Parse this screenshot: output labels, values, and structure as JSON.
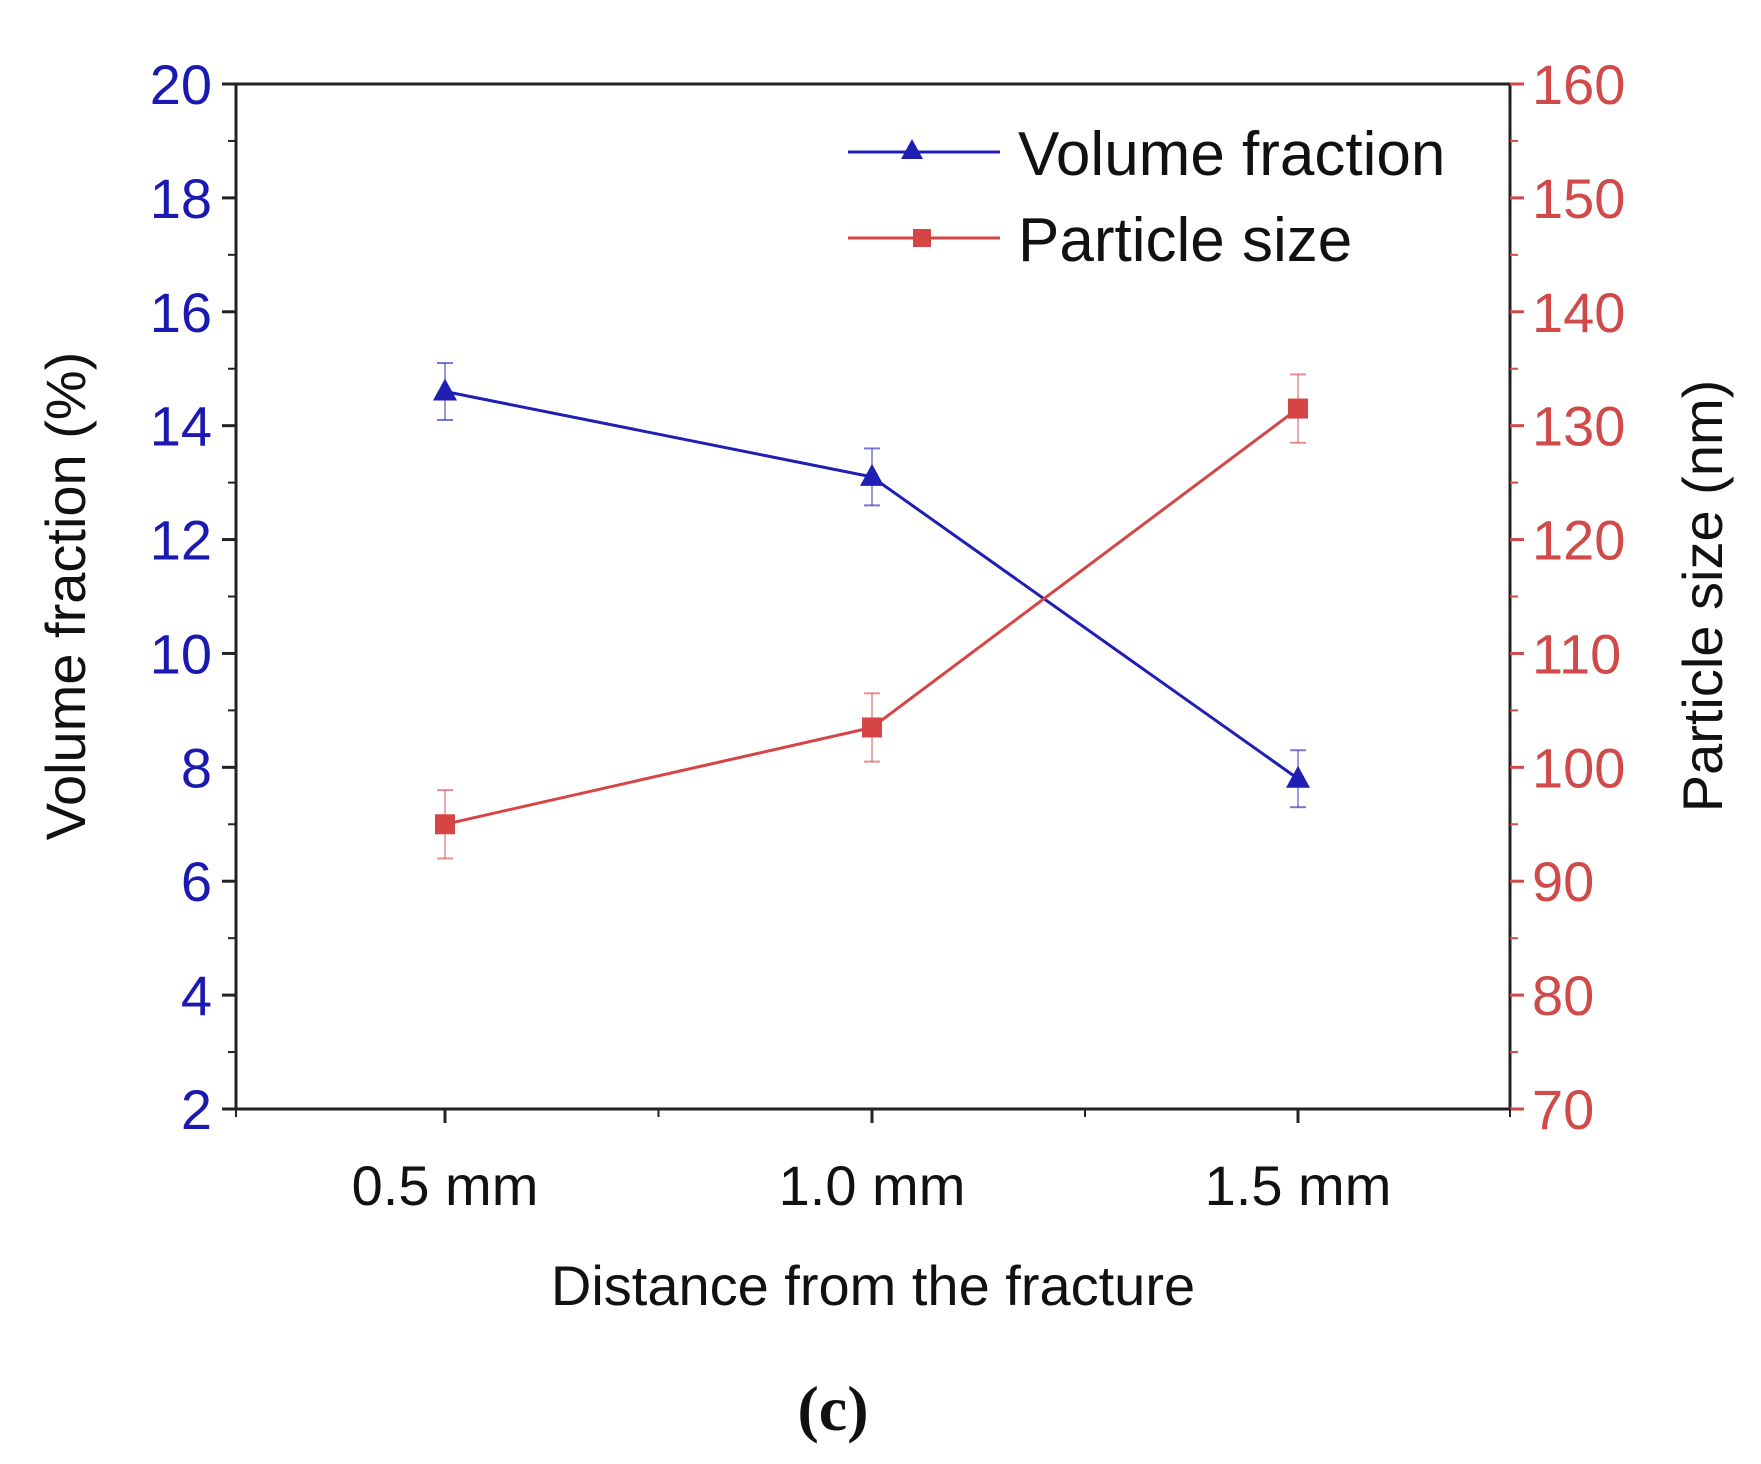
{
  "chart_data": {
    "type": "line",
    "categories": [
      "0.5 mm",
      "1.0 mm",
      "1.5 mm"
    ],
    "xlabel": "Distance from the fracture",
    "ylabel_left": "Volume fraction (%)",
    "ylabel_right": "Particle size (nm)",
    "ylim_left": [
      2,
      20
    ],
    "ylim_right": [
      70,
      160
    ],
    "yticks_left": [
      "2",
      "4",
      "6",
      "8",
      "10",
      "12",
      "14",
      "16",
      "18",
      "20"
    ],
    "yticks_right": [
      "70",
      "80",
      "90",
      "100",
      "110",
      "120",
      "130",
      "140",
      "150",
      "160"
    ],
    "series": [
      {
        "name": "Volume fraction",
        "axis": "left",
        "marker": "triangle",
        "color": "#1f1fb4",
        "values": [
          14.6,
          13.1,
          7.8
        ],
        "error": [
          0.5,
          0.5,
          0.5
        ]
      },
      {
        "name": "Particle size",
        "axis": "right",
        "marker": "square",
        "color": "#d64545",
        "values": [
          95,
          103.5,
          131.5
        ],
        "error": [
          3,
          3,
          3
        ]
      }
    ],
    "legend": "top-right",
    "panel_label": "(c)"
  },
  "colors": {
    "left_axis": "#1a1ab0",
    "right_axis": "#d04a4a",
    "frame": "#222222"
  }
}
